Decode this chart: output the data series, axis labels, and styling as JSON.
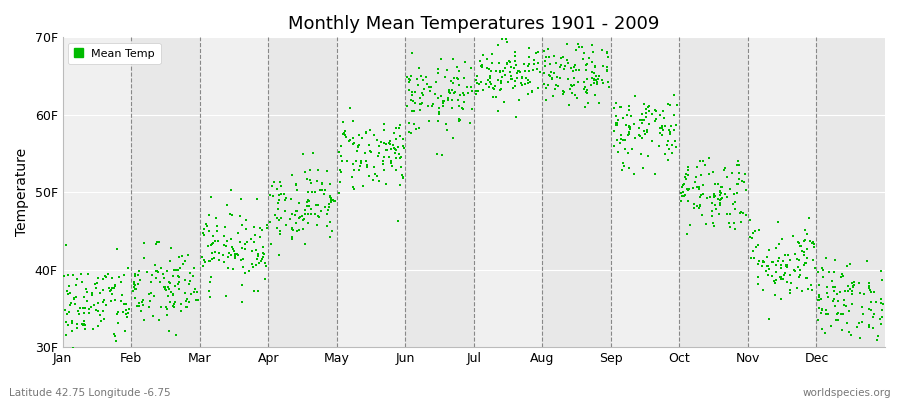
{
  "title": "Monthly Mean Temperatures 1901 - 2009",
  "ylabel": "Temperature",
  "subtitle_left": "Latitude 42.75 Longitude -6.75",
  "subtitle_right": "worldspecies.org",
  "legend_label": "Mean Temp",
  "dot_color": "#00BB00",
  "background_color": "#FFFFFF",
  "plot_bg_color": "#F0F0F0",
  "alt_band_color": "#E8E8E8",
  "months": [
    "Jan",
    "Feb",
    "Mar",
    "Apr",
    "May",
    "Jun",
    "Jul",
    "Aug",
    "Sep",
    "Oct",
    "Nov",
    "Dec"
  ],
  "month_mean_F": [
    35.5,
    37.5,
    43.0,
    48.5,
    55.0,
    62.0,
    65.5,
    65.0,
    58.0,
    50.0,
    41.0,
    36.0
  ],
  "month_std_F": [
    2.8,
    2.8,
    2.6,
    2.5,
    2.5,
    2.5,
    2.0,
    2.0,
    2.5,
    2.5,
    2.6,
    2.6
  ],
  "n_years": 109,
  "ylim_low": 30,
  "ylim_high": 70,
  "yticks": [
    30,
    40,
    50,
    60,
    70
  ],
  "ytick_labels": [
    "30F",
    "40F",
    "50F",
    "60F",
    "70F"
  ],
  "seed": 42
}
